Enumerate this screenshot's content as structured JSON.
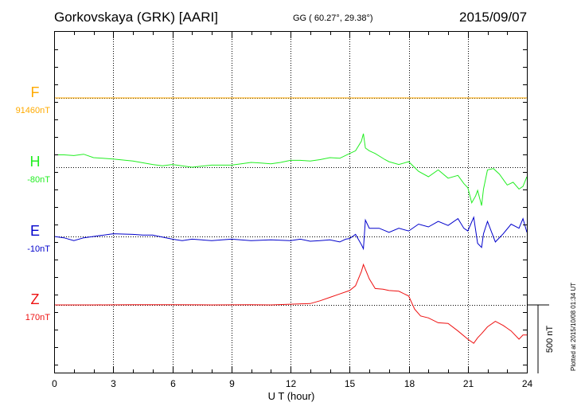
{
  "header": {
    "title": "Gorkovskaya (GRK)  [AARI]",
    "coords": "GG ( 60.27°,  29.38°)",
    "date": "2015/09/07"
  },
  "footer": {
    "plotted": "Plotted at 2015/10/08 01:34 UT"
  },
  "chart_data": {
    "type": "line",
    "title": "Gorkovskaya (GRK)  [AARI]",
    "xlabel": "U T (hour)",
    "xlim": [
      0,
      24
    ],
    "xticks": [
      0,
      3,
      6,
      9,
      12,
      15,
      18,
      21,
      24
    ],
    "grid": true,
    "scale_bar": {
      "label": "500 nT",
      "value_nT": 500
    },
    "series": [
      {
        "name": "F",
        "baseline_label": "91460nT",
        "baseline_nT": 91460,
        "color": "#ffaa00",
        "x": [
          0,
          24
        ],
        "y": [
          0,
          0
        ]
      },
      {
        "name": "H",
        "baseline_label": "-80nT",
        "baseline_nT": -80,
        "color": "#22ee22",
        "x": [
          0,
          0.5,
          1,
          1.5,
          2,
          3,
          4,
          5,
          5.5,
          6,
          7,
          8,
          9,
          9.5,
          10,
          10.5,
          11,
          11.5,
          12,
          12.5,
          13,
          13.5,
          14,
          14.5,
          15,
          15.3,
          15.6,
          15.7,
          15.8,
          16,
          16.3,
          16.8,
          17,
          17.5,
          18,
          18.5,
          19,
          19.5,
          20,
          20.5,
          20.8,
          21,
          21.2,
          21.4,
          21.5,
          21.7,
          21.8,
          22,
          22.3,
          22.6,
          23,
          23.3,
          23.6,
          23.8,
          24
        ],
        "y": [
          90,
          90,
          85,
          95,
          70,
          60,
          45,
          20,
          10,
          20,
          0,
          15,
          15,
          25,
          35,
          30,
          25,
          35,
          50,
          50,
          45,
          55,
          70,
          65,
          100,
          120,
          190,
          245,
          140,
          120,
          100,
          55,
          40,
          20,
          40,
          -30,
          -70,
          -20,
          -80,
          -60,
          -120,
          -150,
          -260,
          -210,
          -170,
          -280,
          -160,
          -20,
          -10,
          -50,
          -130,
          -110,
          -160,
          -140,
          -70
        ]
      },
      {
        "name": "E",
        "baseline_label": "-10nT",
        "baseline_nT": -10,
        "color": "#0000cc",
        "x": [
          0,
          0.5,
          1,
          1.5,
          2,
          3,
          4,
          4.5,
          5,
          6,
          6.5,
          7,
          8,
          9,
          10,
          11,
          12,
          12.5,
          13,
          13.5,
          14,
          14.5,
          14.8,
          15,
          15.3,
          15.6,
          15.7,
          15.8,
          16,
          16.5,
          17,
          17.5,
          18,
          18.5,
          19,
          19.5,
          20,
          20.5,
          20.8,
          21,
          21.3,
          21.5,
          21.7,
          21.8,
          22,
          22.4,
          22.8,
          23.2,
          23.6,
          23.8,
          24
        ],
        "y": [
          0,
          -10,
          -30,
          -10,
          0,
          20,
          15,
          10,
          10,
          -20,
          -30,
          -20,
          -30,
          -20,
          -30,
          -25,
          -30,
          -20,
          -35,
          -30,
          -25,
          -40,
          -20,
          -15,
          15,
          -60,
          -90,
          120,
          60,
          60,
          30,
          60,
          40,
          90,
          70,
          110,
          80,
          130,
          60,
          40,
          140,
          -50,
          -80,
          20,
          110,
          -40,
          20,
          90,
          60,
          130,
          30
        ]
      },
      {
        "name": "Z",
        "baseline_label": "170nT",
        "baseline_nT": 170,
        "color": "#ee1111",
        "x": [
          0,
          2,
          4,
          6,
          8,
          10,
          11,
          12,
          13,
          13.5,
          14,
          14.5,
          15,
          15.3,
          15.6,
          15.7,
          15.8,
          16,
          16.3,
          16.7,
          17,
          17.5,
          18,
          18.3,
          18.6,
          19,
          19.5,
          20,
          20.5,
          21,
          21.3,
          21.5,
          21.7,
          22,
          22.4,
          22.8,
          23.2,
          23.6,
          23.8,
          24
        ],
        "y": [
          0,
          0,
          2,
          2,
          0,
          2,
          0,
          5,
          10,
          30,
          55,
          80,
          105,
          140,
          245,
          295,
          260,
          190,
          120,
          115,
          105,
          100,
          65,
          -30,
          -80,
          -95,
          -130,
          -135,
          -190,
          -250,
          -280,
          -240,
          -210,
          -160,
          -120,
          -150,
          -190,
          -250,
          -220,
          -220
        ]
      }
    ]
  }
}
